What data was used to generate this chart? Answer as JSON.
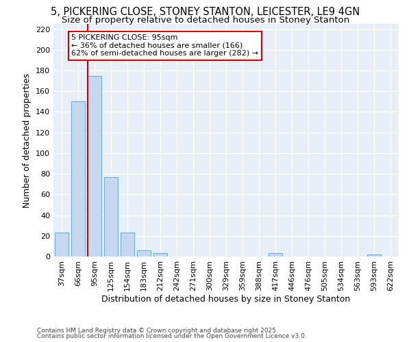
{
  "title": "5, PICKERING CLOSE, STONEY STANTON, LEICESTER, LE9 4GN",
  "subtitle": "Size of property relative to detached houses in Stoney Stanton",
  "xlabel": "Distribution of detached houses by size in Stoney Stanton",
  "ylabel": "Number of detached properties",
  "footnote1": "Contains HM Land Registry data © Crown copyright and database right 2025.",
  "footnote2": "Contains public sector information licensed under the Open Government Licence v3.0.",
  "categories": [
    "37sqm",
    "66sqm",
    "95sqm",
    "125sqm",
    "154sqm",
    "183sqm",
    "212sqm",
    "242sqm",
    "271sqm",
    "300sqm",
    "329sqm",
    "359sqm",
    "388sqm",
    "417sqm",
    "446sqm",
    "476sqm",
    "505sqm",
    "534sqm",
    "563sqm",
    "593sqm",
    "622sqm"
  ],
  "values": [
    23,
    150,
    175,
    77,
    23,
    6,
    3,
    0,
    0,
    0,
    0,
    0,
    0,
    3,
    0,
    0,
    0,
    0,
    0,
    2,
    0
  ],
  "bar_color": "#c5d8f0",
  "bar_edge_color": "#6aaed6",
  "highlight_bar_index": 2,
  "highlight_line_color": "#cc0000",
  "annotation_line1": "5 PICKERING CLOSE: 95sqm",
  "annotation_line2": "← 36% of detached houses are smaller (166)",
  "annotation_line3": "62% of semi-detached houses are larger (282) →",
  "annotation_box_color": "#ffffff",
  "annotation_box_edge_color": "#cc0000",
  "ylim": [
    0,
    225
  ],
  "yticks": [
    0,
    20,
    40,
    60,
    80,
    100,
    120,
    140,
    160,
    180,
    200,
    220
  ],
  "bg_color": "#e8eef8",
  "fig_bg_color": "#ffffff",
  "grid_color": "#ffffff",
  "title_fontsize": 10.5,
  "subtitle_fontsize": 9.5,
  "tick_fontsize": 8,
  "ylabel_fontsize": 9,
  "xlabel_fontsize": 9,
  "footnote_fontsize": 6.5,
  "annotation_fontsize": 8
}
